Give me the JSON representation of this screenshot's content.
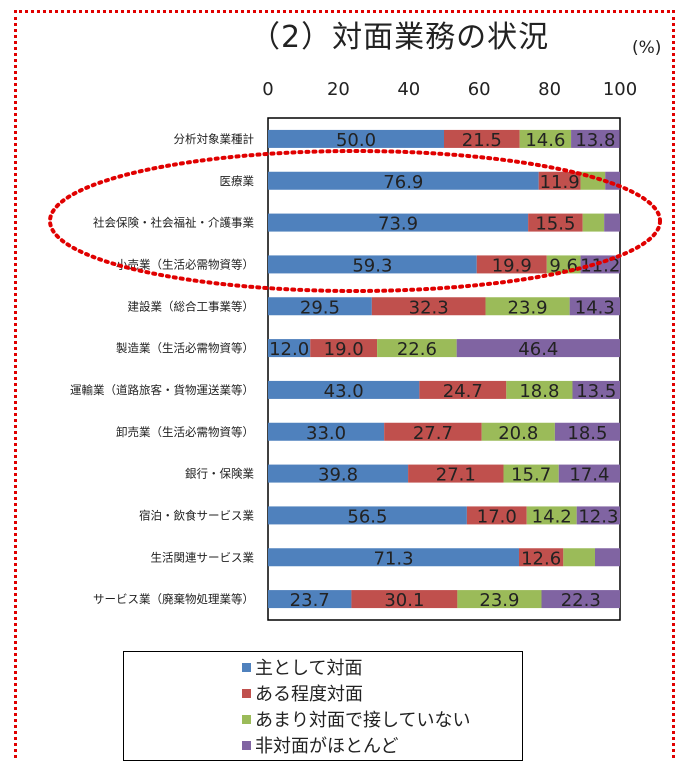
{
  "title": "（2）対面業務の状況",
  "unit": "(%)",
  "legend": [
    {
      "label": "主として対面",
      "color": "#4F81BD"
    },
    {
      "label": "ある程度対面",
      "color": "#C0504D"
    },
    {
      "label": "あまり対面で接していない",
      "color": "#9BBB59"
    },
    {
      "label": "非対面がほとんど",
      "color": "#8064A2"
    }
  ],
  "chart_data": {
    "type": "bar",
    "orientation": "horizontal",
    "stacked": true,
    "xlim": [
      0,
      100
    ],
    "xticks": [
      "0",
      "20",
      "40",
      "60",
      "80",
      "100"
    ],
    "categories": [
      "分析対象業種計",
      "医療業",
      "社会保険・社会福祉・介護事業",
      "小売業（生活必需物資等）",
      "建設業（総合工事業等）",
      "製造業（生活必需物資等）",
      "運輸業（道路旅客・貨物運送業等）",
      "卸売業（生活必需物資等）",
      "銀行・保険業",
      "宿泊・飲食サービス業",
      "生活関連サービス業",
      "サービス業（廃棄物処理業等）"
    ],
    "series": [
      {
        "name": "主として対面",
        "color": "#4F81BD",
        "values": [
          50.0,
          76.9,
          73.9,
          59.3,
          29.5,
          12.0,
          43.0,
          33.0,
          39.8,
          56.5,
          71.3,
          23.7
        ],
        "labels": [
          "50.0",
          "76.9",
          "73.9",
          "59.3",
          "29.5",
          "12.0",
          "43.0",
          "33.0",
          "39.8",
          "56.5",
          "71.3",
          "23.7"
        ]
      },
      {
        "name": "ある程度対面",
        "color": "#C0504D",
        "values": [
          21.5,
          11.9,
          15.5,
          19.9,
          32.3,
          19.0,
          24.7,
          27.7,
          27.1,
          17.0,
          12.6,
          30.1
        ],
        "labels": [
          "21.5",
          "11.9",
          "15.5",
          "19.9",
          "32.3",
          "19.0",
          "24.7",
          "27.7",
          "27.1",
          "17.0",
          "12.6",
          "30.1"
        ]
      },
      {
        "name": "あまり対面で接していない",
        "color": "#9BBB59",
        "values": [
          14.6,
          7.0,
          6.1,
          9.6,
          23.9,
          22.6,
          18.8,
          20.8,
          15.7,
          14.2,
          9.0,
          23.9
        ],
        "labels": [
          "14.6",
          "",
          "",
          "9.6",
          "23.9",
          "22.6",
          "18.8",
          "20.8",
          "15.7",
          "14.2",
          "",
          "23.9"
        ]
      },
      {
        "name": "非対面がほとんど",
        "color": "#8064A2",
        "values": [
          13.8,
          4.2,
          4.5,
          11.2,
          14.3,
          46.4,
          13.5,
          18.5,
          17.4,
          12.3,
          7.1,
          22.3
        ],
        "labels": [
          "13.8",
          "",
          "",
          "11.2",
          "14.3",
          "46.4",
          "13.5",
          "18.5",
          "17.4",
          "12.3",
          "",
          "22.3"
        ]
      }
    ]
  }
}
